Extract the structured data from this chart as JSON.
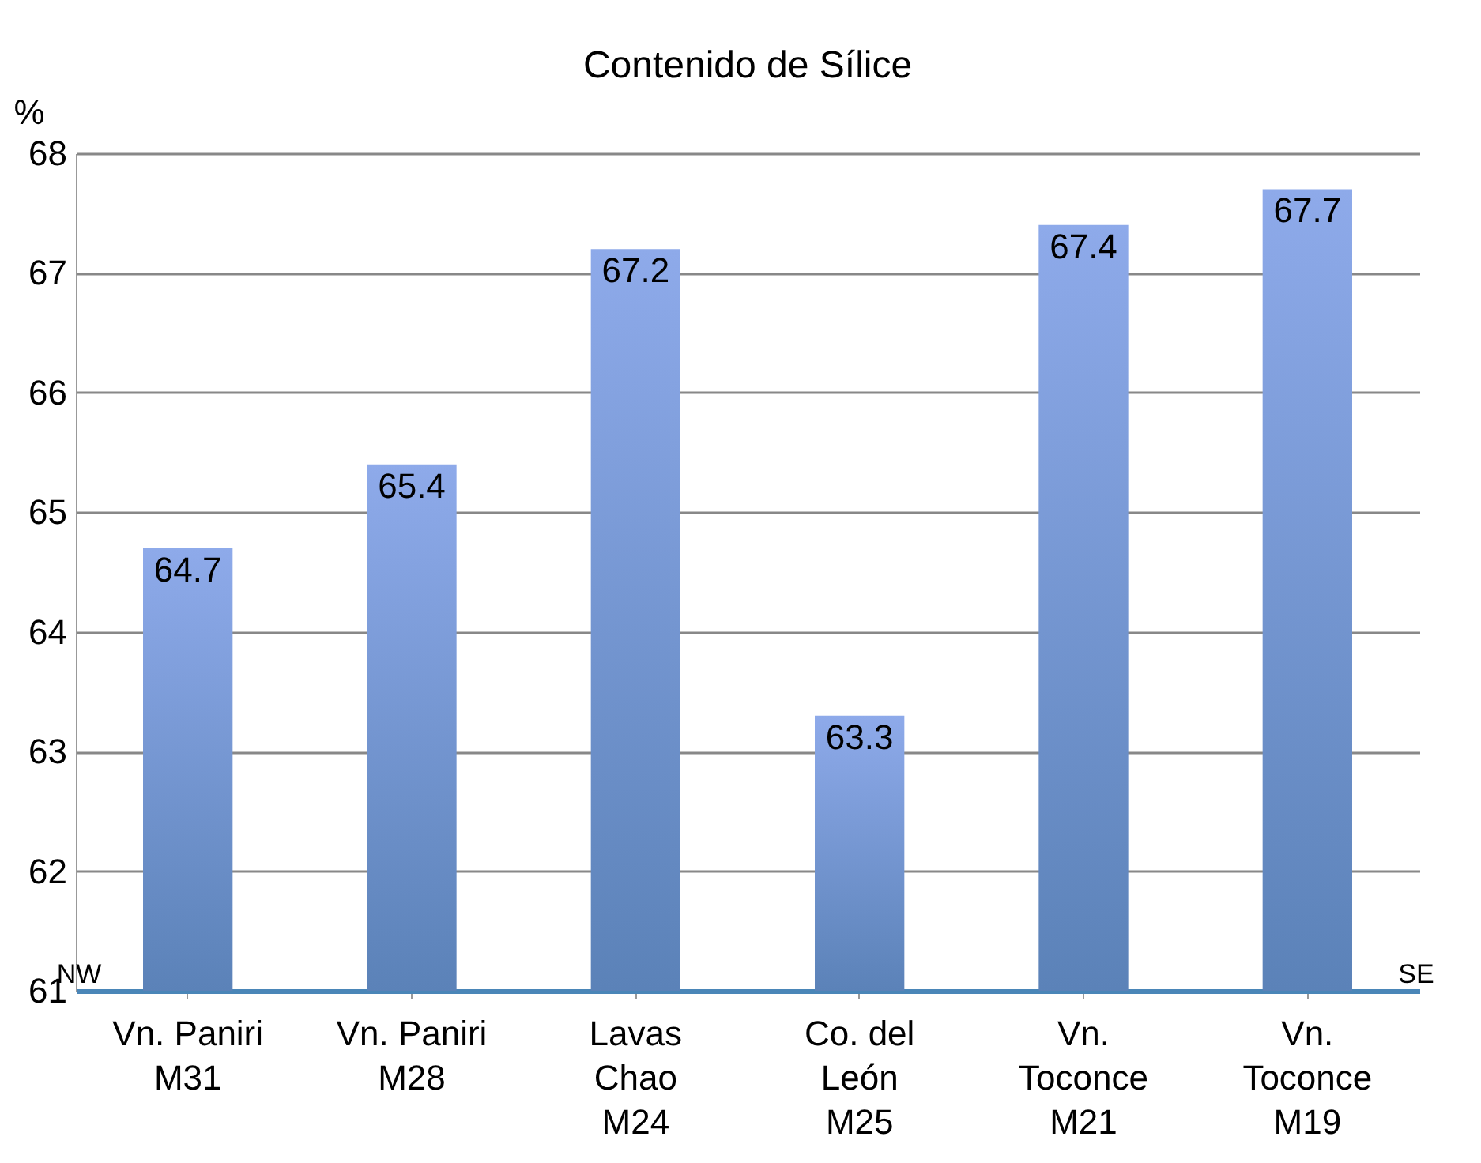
{
  "chart_data": {
    "type": "bar",
    "title": "Contenido de Sílice",
    "ylabel": "%",
    "categories": [
      "Vn. Paniri\nM31",
      "Vn. Paniri\nM28",
      "Lavas\nChao\nM24",
      "Co. del\nLeón\nM25",
      "Vn.\nToconce\nM21",
      "Vn.\nToconce\nM19"
    ],
    "values": [
      64.7,
      65.4,
      67.2,
      63.3,
      67.4,
      67.7
    ],
    "color": "#8eaaea",
    "ylim": [
      61,
      68
    ],
    "yticks": [
      61,
      62,
      63,
      64,
      65,
      66,
      67,
      68
    ],
    "grid": "y",
    "data_labels": true,
    "annotations": [
      "NW",
      "SE"
    ]
  }
}
